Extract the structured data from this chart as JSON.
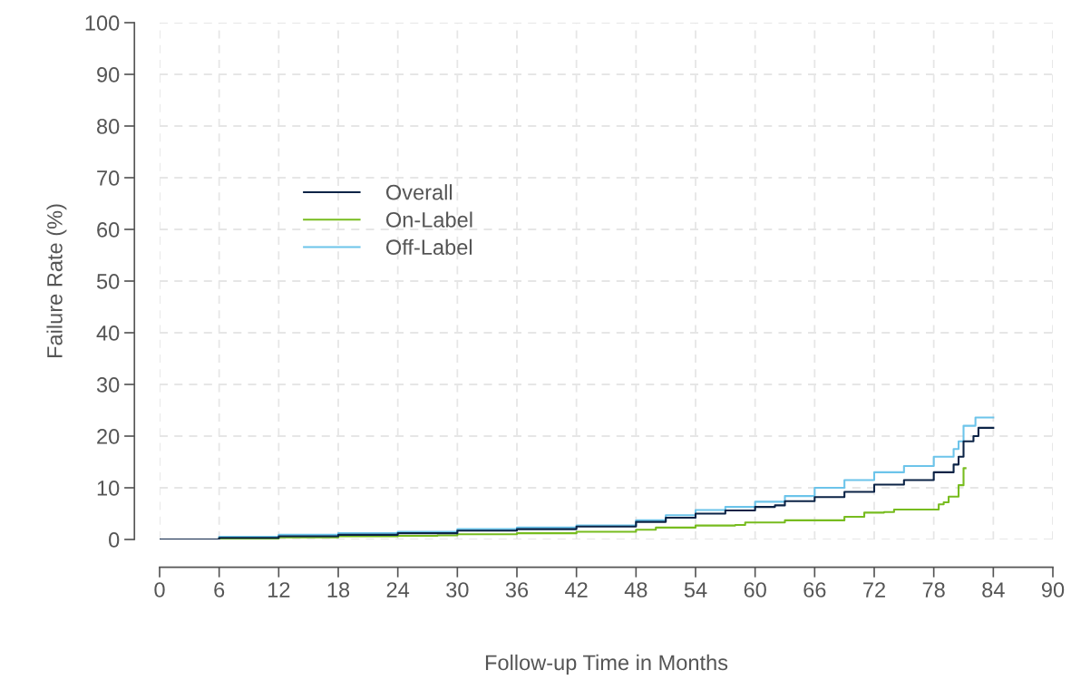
{
  "chart_data": {
    "type": "step",
    "xlabel": "Follow-up Time in Months",
    "ylabel": "Failure Rate (%)",
    "xlim": [
      0,
      90
    ],
    "xticks": [
      0,
      6,
      12,
      18,
      24,
      30,
      36,
      42,
      48,
      54,
      60,
      66,
      72,
      78,
      84,
      90
    ],
    "ylim": [
      0,
      100
    ],
    "yticks": [
      0,
      10,
      20,
      30,
      40,
      50,
      60,
      70,
      80,
      90,
      100
    ],
    "grid": true,
    "legend": "center left",
    "line_style": "solid",
    "series": [
      {
        "name": "Overall",
        "color": "#0b2346",
        "x": [
          0,
          6,
          12,
          18,
          24,
          30,
          36,
          42,
          48,
          51,
          54,
          57,
          60,
          62,
          63,
          66,
          69,
          72,
          75,
          78,
          80,
          80.5,
          81,
          82,
          82.5,
          84
        ],
        "values": [
          0,
          0.3,
          0.6,
          0.9,
          1.2,
          1.7,
          2.0,
          2.5,
          3.4,
          4.2,
          5.0,
          5.6,
          6.3,
          6.6,
          7.4,
          8.2,
          9.2,
          10.6,
          11.5,
          13.0,
          14.5,
          16,
          19,
          20,
          21.6,
          21.6
        ]
      },
      {
        "name": "On-Label",
        "color": "#77bc1f",
        "x": [
          0,
          6,
          12,
          18,
          24,
          28,
          30,
          36,
          42,
          48,
          50,
          54,
          58,
          59,
          62,
          63,
          68,
          69,
          71,
          73,
          74,
          78,
          78.5,
          79,
          79.5,
          80.2,
          80.5,
          81,
          81.2
        ],
        "values": [
          0,
          0.2,
          0.4,
          0.6,
          0.7,
          0.8,
          1.0,
          1.2,
          1.5,
          1.9,
          2.3,
          2.7,
          2.8,
          3.3,
          3.3,
          3.7,
          3.7,
          4.4,
          5.2,
          5.3,
          5.8,
          5.8,
          6.8,
          7.2,
          8.3,
          8.3,
          10.5,
          13.8,
          13.8
        ]
      },
      {
        "name": "Off-Label",
        "color": "#6cc4ea",
        "x": [
          0,
          6,
          12,
          18,
          24,
          30,
          36,
          42,
          48,
          51,
          54,
          57,
          60,
          63,
          66,
          69,
          72,
          75,
          78,
          80,
          80.5,
          81,
          82,
          82.2,
          84
        ],
        "values": [
          0,
          0.5,
          0.9,
          1.2,
          1.5,
          2.0,
          2.3,
          2.7,
          3.7,
          4.7,
          5.7,
          6.3,
          7.3,
          8.4,
          10.0,
          11.5,
          13.0,
          14.2,
          16.0,
          17.5,
          19,
          22,
          22,
          23.6,
          23.6
        ]
      }
    ]
  }
}
